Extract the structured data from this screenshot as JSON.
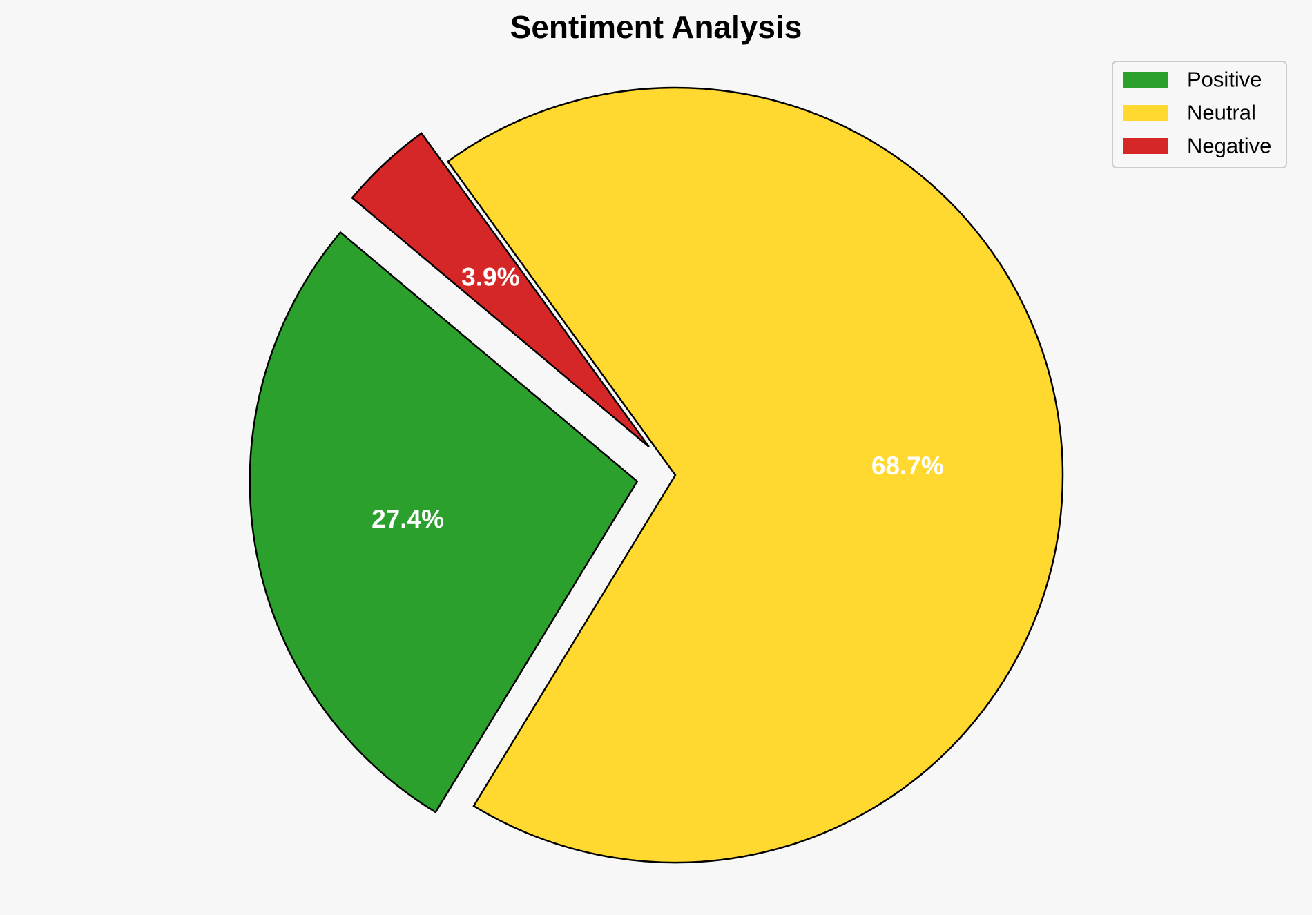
{
  "chart_data": {
    "type": "pie",
    "title": "Sentiment Analysis",
    "slices": [
      {
        "label": "Positive",
        "value": 27.4,
        "display": "27.4%",
        "color": "#2ca02c",
        "exploded": true
      },
      {
        "label": "Neutral",
        "value": 68.7,
        "display": "68.7%",
        "color": "#ffd92f",
        "exploded": false
      },
      {
        "label": "Negative",
        "value": 3.9,
        "display": "3.9%",
        "color": "#d62728",
        "exploded": true
      }
    ],
    "legend": {
      "placement": "top-right",
      "entries": [
        "Positive",
        "Neutral",
        "Negative"
      ]
    },
    "edge_color": "#000000",
    "background_color": "#f7f7f7"
  }
}
